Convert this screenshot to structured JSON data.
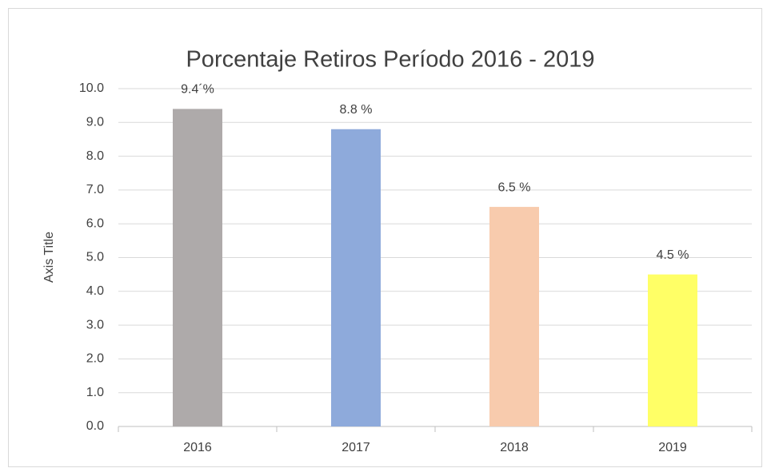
{
  "chart_data": {
    "type": "bar",
    "title": "Porcentaje Retiros Período 2016 - 2019",
    "y_label": "Axis Title",
    "categories": [
      "2016",
      "2017",
      "2018",
      "2019"
    ],
    "values": [
      9.4,
      8.8,
      6.5,
      4.5
    ],
    "value_labels": [
      "9.4´%",
      "8.8 %",
      "6.5 %",
      "4.5 %"
    ],
    "colors": [
      "#aeaaaa",
      "#8eaadb",
      "#f8cbad",
      "#ffff66"
    ],
    "ylim": [
      0,
      10
    ],
    "yticks": [
      {
        "value": 0,
        "label": "0.0"
      },
      {
        "value": 1,
        "label": "1.0"
      },
      {
        "value": 2,
        "label": "2.0"
      },
      {
        "value": 3,
        "label": "3.0"
      },
      {
        "value": 4,
        "label": "4.0"
      },
      {
        "value": 5,
        "label": "5.0"
      },
      {
        "value": 6,
        "label": "6.0"
      },
      {
        "value": 7,
        "label": "7.0"
      },
      {
        "value": 8,
        "label": "8.0"
      },
      {
        "value": 9,
        "label": "9.0"
      },
      {
        "value": 10,
        "label": "10.0"
      }
    ],
    "grid": true
  }
}
